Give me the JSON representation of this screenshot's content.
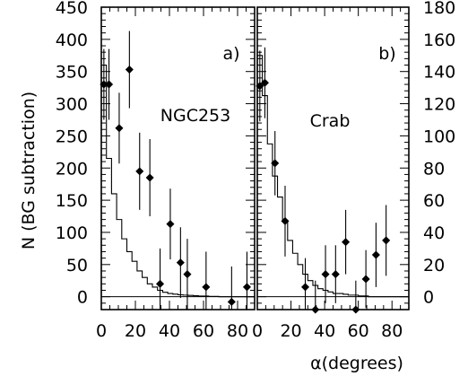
{
  "chart_data": {
    "type": "scatter",
    "ylabel": "N (BG subtraction)",
    "xlabel": "α(degrees)",
    "x_ticks": [
      0,
      20,
      40,
      60,
      80
    ],
    "x_tick_labels_a": [
      "0",
      "20",
      "40",
      "60",
      "80"
    ],
    "x_tick_labels_b": [
      "0",
      "20",
      "40",
      "60",
      "80"
    ],
    "panels": [
      {
        "label": "a)",
        "source": "NGC253",
        "xlim": [
          0,
          90
        ],
        "ylim": [
          -20,
          450
        ],
        "y_ticks": [
          0,
          50,
          100,
          150,
          200,
          250,
          300,
          350,
          400,
          450
        ],
        "y_tick_labels": [
          "0",
          "50",
          "100",
          "150",
          "200",
          "250",
          "300",
          "350",
          "400",
          "450"
        ],
        "points": [
          {
            "x": 1.5,
            "y": 330,
            "err": 55
          },
          {
            "x": 4.5,
            "y": 330,
            "err": 55
          },
          {
            "x": 10.5,
            "y": 262,
            "err": 55
          },
          {
            "x": 16.5,
            "y": 353,
            "err": 60
          },
          {
            "x": 22.5,
            "y": 195,
            "err": 60
          },
          {
            "x": 28.5,
            "y": 185,
            "err": 60
          },
          {
            "x": 34.5,
            "y": 20,
            "err": 55
          },
          {
            "x": 40.5,
            "y": 113,
            "err": 55
          },
          {
            "x": 46.5,
            "y": 53,
            "err": 55
          },
          {
            "x": 50.5,
            "y": 35,
            "err": 55
          },
          {
            "x": 61.5,
            "y": 15,
            "err": 55
          },
          {
            "x": 76.5,
            "y": -8,
            "err": 55
          },
          {
            "x": 85.5,
            "y": 15,
            "err": 55
          }
        ],
        "model_histogram": {
          "bin_edges": [
            0,
            3,
            6,
            9,
            12,
            15,
            18,
            21,
            24,
            27,
            30,
            33,
            36,
            39,
            42,
            45,
            48,
            51,
            54,
            57,
            60,
            63,
            66,
            69,
            72,
            75,
            78,
            81,
            84,
            87,
            90
          ],
          "values": [
            360,
            215,
            160,
            120,
            90,
            70,
            55,
            40,
            30,
            20,
            15,
            10,
            7,
            5,
            4,
            3,
            2.5,
            2,
            1.5,
            1,
            1,
            0.5,
            0.5,
            0,
            0,
            0,
            0,
            0,
            0,
            0
          ]
        }
      },
      {
        "label": "b)",
        "source": "Crab",
        "xlim": [
          0,
          90
        ],
        "ylim": [
          -8,
          180
        ],
        "y_ticks": [
          0,
          20,
          40,
          60,
          80,
          100,
          120,
          140,
          160,
          180
        ],
        "y_tick_labels": [
          "0",
          "20",
          "40",
          "60",
          "80",
          "100",
          "120",
          "140",
          "160",
          "180"
        ],
        "points": [
          {
            "x": 1.5,
            "y": 131,
            "err": 22
          },
          {
            "x": 4.5,
            "y": 133,
            "err": 22
          },
          {
            "x": 10.5,
            "y": 83,
            "err": 20
          },
          {
            "x": 16.5,
            "y": 47,
            "err": 22
          },
          {
            "x": 28.5,
            "y": 6,
            "err": 18
          },
          {
            "x": 34.5,
            "y": -8,
            "err": 18
          },
          {
            "x": 40.5,
            "y": 14,
            "err": 18
          },
          {
            "x": 46.5,
            "y": 14,
            "err": 18
          },
          {
            "x": 52.5,
            "y": 34,
            "err": 20
          },
          {
            "x": 58.5,
            "y": -8,
            "err": 18
          },
          {
            "x": 64.5,
            "y": 11,
            "err": 18
          },
          {
            "x": 70.5,
            "y": 26,
            "err": 20
          },
          {
            "x": 76.5,
            "y": 35,
            "err": 22
          }
        ],
        "model_histogram": {
          "bin_edges": [
            0,
            3,
            6,
            9,
            12,
            15,
            18,
            21,
            24,
            27,
            30,
            33,
            36,
            39,
            42,
            45,
            48,
            51,
            54,
            57,
            60,
            63,
            66,
            69,
            72,
            75,
            78,
            81,
            84,
            87,
            90
          ],
          "values": [
            150,
            125,
            95,
            75,
            62,
            47,
            35,
            27,
            20,
            14,
            10,
            7,
            5,
            4,
            3,
            2,
            2,
            1.5,
            1,
            1,
            0.5,
            0.5,
            0,
            0,
            0,
            0,
            0,
            0,
            0,
            0
          ]
        }
      }
    ]
  }
}
